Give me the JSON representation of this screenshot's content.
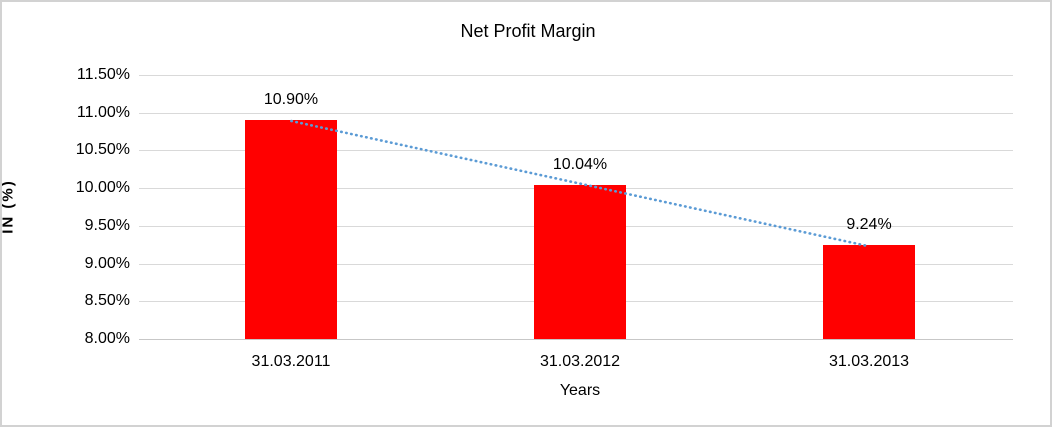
{
  "chart_data": {
    "type": "bar",
    "title": "Net Profit Margin",
    "xlabel": "Years",
    "ylabel": "IN (%)",
    "categories": [
      "31.03.2011",
      "31.03.2012",
      "31.03.2013"
    ],
    "values": [
      10.9,
      10.04,
      9.24
    ],
    "data_labels": [
      "10.90%",
      "10.04%",
      "9.24%"
    ],
    "ylim": [
      8.0,
      11.5
    ],
    "ytick_step": 0.5,
    "ytick_labels": [
      "8.00%",
      "8.50%",
      "9.00%",
      "9.50%",
      "10.00%",
      "10.50%",
      "11.00%",
      "11.50%"
    ],
    "grid": true,
    "legend_position": "none",
    "bar_color": "#ff0000",
    "trendline": {
      "type": "linear",
      "style": "dotted",
      "color": "#5b9bd5"
    }
  }
}
